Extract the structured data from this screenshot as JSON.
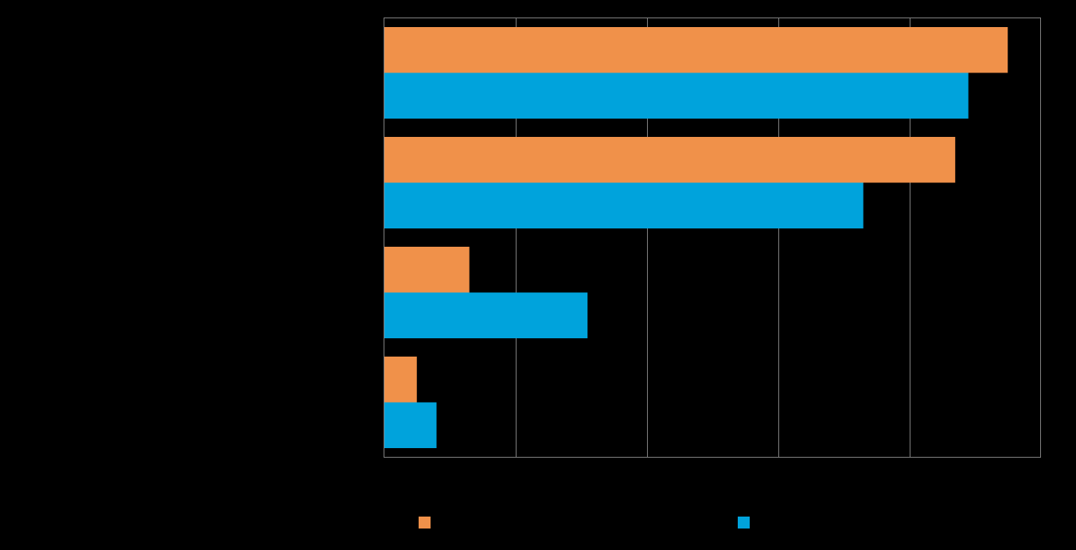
{
  "chart_data": {
    "type": "bar",
    "orientation": "horizontal",
    "categories": [
      "",
      "",
      "",
      ""
    ],
    "series": [
      {
        "color": "#f0914a",
        "values": [
          95,
          87,
          13,
          5
        ]
      },
      {
        "color": "#00a3dc",
        "values": [
          89,
          73,
          31,
          8
        ]
      }
    ],
    "xlim": [
      0,
      100
    ],
    "xticks": [
      0,
      20,
      40,
      60,
      80,
      100
    ],
    "grid": true,
    "legend_position": "bottom",
    "background": "#000000",
    "plot_background": "#000000",
    "grid_color": "#808080"
  }
}
